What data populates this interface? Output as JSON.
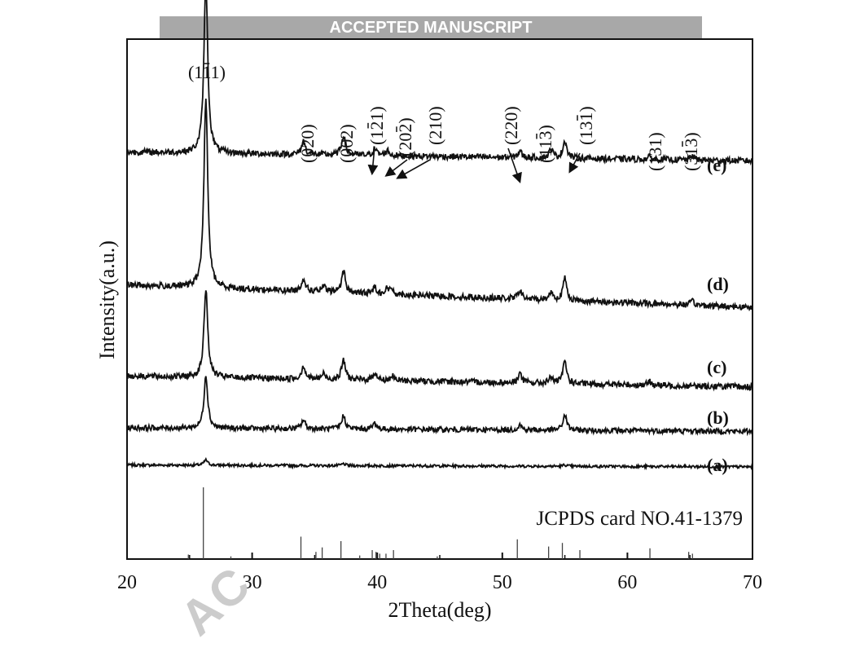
{
  "banner": "ACCEPTED MANUSCRIPT",
  "watermark": "AC",
  "chart_data": {
    "type": "line",
    "xlabel": "2Theta(deg)",
    "ylabel": "Intensity(a.u.)",
    "xlim": [
      20,
      70
    ],
    "xticks": [
      20,
      30,
      40,
      50,
      60,
      70
    ],
    "grid": false,
    "colors": {
      "line": "#111111",
      "reference": "#444444"
    },
    "peak_positions": [
      26.3,
      34.1,
      37.3,
      39.8,
      40.8,
      41.2,
      51.4,
      53.9,
      55.0,
      61.8,
      65.2
    ],
    "series": [
      {
        "label": "(a)",
        "baseline": 0.05,
        "slope": 0.004,
        "noise": 0.003,
        "peaks": [
          [
            26.3,
            0.012
          ],
          [
            37.3,
            0.004
          ],
          [
            55.0,
            0.003
          ]
        ]
      },
      {
        "label": "(b)",
        "baseline": 0.13,
        "slope": 0.008,
        "noise": 0.006,
        "peaks": [
          [
            26.3,
            0.12
          ],
          [
            34.1,
            0.02
          ],
          [
            37.3,
            0.03
          ],
          [
            39.8,
            0.014
          ],
          [
            51.4,
            0.012
          ],
          [
            55.0,
            0.035
          ]
        ]
      },
      {
        "label": "(c)",
        "baseline": 0.23,
        "slope": 0.025,
        "noise": 0.007,
        "peaks": [
          [
            26.3,
            0.2
          ],
          [
            34.1,
            0.03
          ],
          [
            35.7,
            0.012
          ],
          [
            37.3,
            0.045
          ],
          [
            39.8,
            0.018
          ],
          [
            41.2,
            0.01
          ],
          [
            51.4,
            0.022
          ],
          [
            53.9,
            0.014
          ],
          [
            55.0,
            0.05
          ],
          [
            61.8,
            0.008
          ]
        ]
      },
      {
        "label": "(d)",
        "baseline": 0.41,
        "slope": 0.05,
        "noise": 0.007,
        "peaks": [
          [
            26.3,
            0.43
          ],
          [
            34.1,
            0.03
          ],
          [
            35.7,
            0.012
          ],
          [
            37.3,
            0.05
          ],
          [
            39.8,
            0.015
          ],
          [
            40.8,
            0.012
          ],
          [
            41.2,
            0.01
          ],
          [
            51.4,
            0.02
          ],
          [
            53.9,
            0.018
          ],
          [
            55.0,
            0.05
          ],
          [
            65.2,
            0.008
          ]
        ]
      },
      {
        "label": "(e)",
        "baseline": 0.74,
        "slope": 0.02,
        "noise": 0.007,
        "peaks": [
          [
            26.3,
            0.39
          ],
          [
            34.1,
            0.03
          ],
          [
            37.3,
            0.045
          ],
          [
            39.8,
            0.015
          ],
          [
            40.8,
            0.012
          ],
          [
            51.4,
            0.015
          ],
          [
            53.9,
            0.02
          ],
          [
            55.0,
            0.04
          ],
          [
            61.8,
            0.006
          ],
          [
            65.2,
            0.01
          ]
        ]
      }
    ],
    "peak_labels": [
      {
        "text": "(111)",
        "bar_index": 2,
        "x": 26.3
      },
      {
        "text": "(020)",
        "bar_index": -1,
        "x": 34.1
      },
      {
        "text": "(002)",
        "bar_index": -1,
        "x": 37.3
      },
      {
        "text": "(121)",
        "bar_index": 2,
        "x": 39.8
      },
      {
        "text": "(202)",
        "bar_index": 3,
        "x": 40.8
      },
      {
        "text": "(210)",
        "bar_index": -1,
        "x": 41.2
      },
      {
        "text": "(220)",
        "bar_index": -1,
        "x": 51.4
      },
      {
        "text": "(113)",
        "bar_index": 3,
        "x": 53.9
      },
      {
        "text": "(131)",
        "bar_index": 3,
        "x": 55.0
      },
      {
        "text": "(131)",
        "bar_index": -1,
        "x": 61.8
      },
      {
        "text": "(313)",
        "bar_index": 3,
        "x": 65.2
      }
    ],
    "reference": {
      "label": "JCPDS card NO.41-1379",
      "lines": [
        [
          24.9,
          0.05
        ],
        [
          26.1,
          0.8
        ],
        [
          28.3,
          0.03
        ],
        [
          33.9,
          0.25
        ],
        [
          35.1,
          0.08
        ],
        [
          35.6,
          0.13
        ],
        [
          37.1,
          0.2
        ],
        [
          38.6,
          0.04
        ],
        [
          39.6,
          0.1
        ],
        [
          39.9,
          0.08
        ],
        [
          40.2,
          0.06
        ],
        [
          40.7,
          0.06
        ],
        [
          41.3,
          0.1
        ],
        [
          44.8,
          0.03
        ],
        [
          51.2,
          0.22
        ],
        [
          53.7,
          0.14
        ],
        [
          54.8,
          0.18
        ],
        [
          56.2,
          0.1
        ],
        [
          61.8,
          0.12
        ],
        [
          64.9,
          0.08
        ],
        [
          65.2,
          0.06
        ]
      ]
    }
  }
}
